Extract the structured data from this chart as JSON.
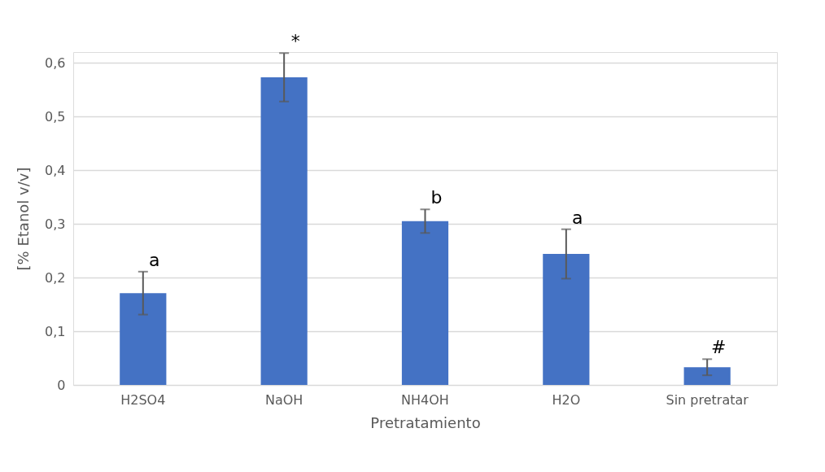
{
  "chart_data": {
    "type": "bar",
    "xlabel": "Pretratamiento",
    "ylabel": "[% Etanol v/v]",
    "categories": [
      "H2SO4",
      "NaOH",
      "NH4OH",
      "H2O",
      "Sin pretratar"
    ],
    "values": [
      0.171,
      0.573,
      0.305,
      0.244,
      0.033
    ],
    "errors": [
      0.04,
      0.045,
      0.022,
      0.046,
      0.015
    ],
    "color": "#4472c4",
    "ylim": [
      0,
      0.62
    ],
    "yticks": [
      0,
      {
        "value": 0.1,
        "label": "0,1"
      },
      {
        "value": 0.2,
        "label": "0,2"
      },
      {
        "value": 0.3,
        "label": "0,3"
      },
      {
        "value": 0.4,
        "label": "0,4"
      },
      {
        "value": 0.5,
        "label": "0,5"
      },
      {
        "value": 0.6,
        "label": "0,6"
      }
    ],
    "grid": "y",
    "annotations": [
      {
        "text": "a",
        "x": "H2SO4",
        "y": 0.171
      },
      {
        "text": "*",
        "x": "NaOH",
        "y": 0.573
      },
      {
        "text": "b",
        "x": "NH4OH",
        "y": 0.305
      },
      {
        "text": "a",
        "x": "H2O",
        "y": 0.244
      },
      {
        "text": "#",
        "x": "Sin pretratar",
        "y": 0.033
      }
    ]
  }
}
